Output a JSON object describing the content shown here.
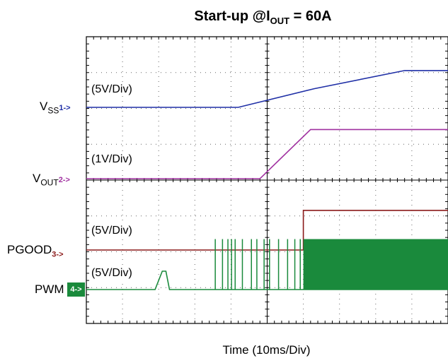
{
  "chart_data": {
    "type": "line",
    "title": "Start-up @I",
    "title_sub": "OUT",
    "title_suffix": " = 60A",
    "xlabel": "Time (10ms/Div)",
    "x_divisions": 10,
    "y_divisions": 8,
    "grid": true,
    "channels": [
      {
        "name_main": "V",
        "name_sub": "SS",
        "marker": "1->",
        "scale": "(5V/Div)",
        "color": "#1f2fa6",
        "points": [
          [
            0,
            0
          ],
          [
            4.2,
            0
          ],
          [
            6.3,
            0.4
          ],
          [
            8.8,
            0.79
          ],
          [
            10,
            0.79
          ]
        ]
      },
      {
        "name_main": "V",
        "name_sub": "OUT",
        "marker": "2->",
        "scale": "(1V/Div)",
        "color": "#a030a0",
        "points": [
          [
            0,
            0
          ],
          [
            4.8,
            0
          ],
          [
            6.2,
            0.98
          ],
          [
            10,
            0.98
          ]
        ]
      },
      {
        "name_main": "PGOOD",
        "name_sub": "",
        "marker": "3->",
        "scale": "(5V/Div)",
        "color": "#8b1a1a",
        "points": [
          [
            0,
            0
          ],
          [
            6.0,
            0
          ],
          [
            6.0,
            0.85
          ],
          [
            10,
            0.85
          ]
        ]
      },
      {
        "name_main": "PWM",
        "name_sub": "",
        "marker": "4->",
        "scale": "(5V/Div)",
        "color": "#1a8a3c",
        "points": [
          [
            0,
            0
          ],
          [
            1.9,
            0
          ],
          [
            2.1,
            0.32
          ],
          [
            2.2,
            0.32
          ],
          [
            2.3,
            0
          ],
          [
            10,
            0
          ]
        ]
      }
    ]
  }
}
